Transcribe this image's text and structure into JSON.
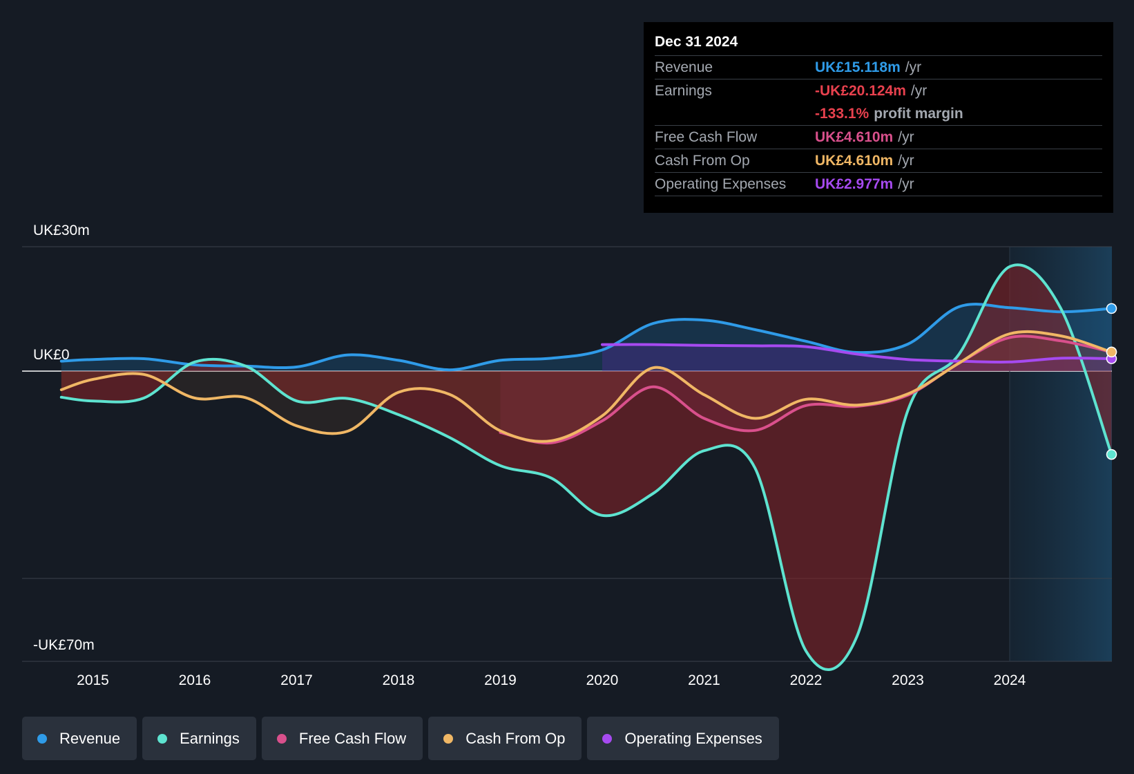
{
  "tooltip": {
    "date": "Dec 31 2024",
    "rows": [
      {
        "label": "Revenue",
        "value": "UK£15.118m",
        "unit": "/yr",
        "color": "#2f9be8"
      },
      {
        "label": "Earnings",
        "value": "-UK£20.124m",
        "unit": "/yr",
        "color": "#e8414e"
      },
      {
        "label": "",
        "value": "-133.1%",
        "unit": "profit margin",
        "color": "#e8414e"
      },
      {
        "label": "Free Cash Flow",
        "value": "UK£4.610m",
        "unit": "/yr",
        "color": "#d9508c"
      },
      {
        "label": "Cash From Op",
        "value": "UK£4.610m",
        "unit": "/yr",
        "color": "#f0b765"
      },
      {
        "label": "Operating Expenses",
        "value": "UK£2.977m",
        "unit": "/yr",
        "color": "#a64af0"
      }
    ]
  },
  "legend": [
    {
      "label": "Revenue",
      "color": "#2f9be8"
    },
    {
      "label": "Earnings",
      "color": "#5ee3d0"
    },
    {
      "label": "Free Cash Flow",
      "color": "#d9508c"
    },
    {
      "label": "Cash From Op",
      "color": "#f0b765"
    },
    {
      "label": "Operating Expenses",
      "color": "#a64af0"
    }
  ],
  "chart_data": {
    "type": "line",
    "title": "",
    "ylabel_top": "UK£30m",
    "ylabel_zero": "UK£0",
    "ylabel_bottom": "-UK£70m",
    "ylim": [
      -70,
      30
    ],
    "xlim": [
      2014.25,
      2025.0
    ],
    "x_ticks": [
      2015,
      2016,
      2017,
      2018,
      2019,
      2020,
      2021,
      2022,
      2023,
      2024
    ],
    "x_tick_labels": [
      "2015",
      "2016",
      "2017",
      "2018",
      "2019",
      "2020",
      "2021",
      "2022",
      "2023",
      "2024"
    ],
    "gridlines": [
      30,
      0,
      -50
    ],
    "forecast_start": 2024.0,
    "series": [
      {
        "name": "Revenue",
        "color": "#2f9be8",
        "x": [
          2014.69,
          2015.0,
          2015.5,
          2016.0,
          2016.5,
          2017.0,
          2017.5,
          2018.0,
          2018.5,
          2019.0,
          2019.5,
          2020.0,
          2020.5,
          2021.0,
          2021.5,
          2022.0,
          2022.5,
          2023.0,
          2023.5,
          2024.0,
          2024.5,
          2025.0
        ],
        "values": [
          2.4,
          2.8,
          3.0,
          1.5,
          1.2,
          1.0,
          3.9,
          2.6,
          0.3,
          2.6,
          3.1,
          5.1,
          11.5,
          12.3,
          10.0,
          7.2,
          4.5,
          6.5,
          15.5,
          15.3,
          14.3,
          15.1
        ]
      },
      {
        "name": "Earnings",
        "color": "#5ee3d0",
        "x": [
          2014.69,
          2015.0,
          2015.5,
          2016.0,
          2016.5,
          2017.0,
          2017.5,
          2018.0,
          2018.5,
          2019.0,
          2019.5,
          2020.0,
          2020.5,
          2021.0,
          2021.5,
          2022.0,
          2022.5,
          2023.0,
          2023.5,
          2024.0,
          2024.5,
          2025.0
        ],
        "values": [
          -6.3,
          -7.2,
          -6.5,
          2.2,
          1.2,
          -7.2,
          -6.6,
          -10.5,
          -16.0,
          -22.8,
          -25.8,
          -34.8,
          -29.5,
          -19.2,
          -23.4,
          -67.5,
          -64.0,
          -9.5,
          4.0,
          25.2,
          15.2,
          -20.1
        ]
      },
      {
        "name": "Free Cash Flow",
        "color": "#d9508c",
        "x": [
          2019.0,
          2019.5,
          2020.0,
          2020.5,
          2021.0,
          2021.5,
          2022.0,
          2022.5,
          2023.0,
          2023.5,
          2024.0,
          2024.5,
          2025.0
        ],
        "values": [
          -14.8,
          -17.3,
          -12.0,
          -3.8,
          -11.4,
          -14.3,
          -8.3,
          -8.5,
          -5.8,
          1.9,
          8.1,
          7.3,
          4.6
        ]
      },
      {
        "name": "Cash From Op",
        "color": "#f0b765",
        "x": [
          2014.69,
          2015.0,
          2015.5,
          2016.0,
          2016.5,
          2017.0,
          2017.5,
          2018.0,
          2018.5,
          2019.0,
          2019.5,
          2020.0,
          2020.5,
          2021.0,
          2021.5,
          2022.0,
          2022.5,
          2023.0,
          2023.5,
          2024.0,
          2024.5,
          2025.0
        ],
        "values": [
          -4.5,
          -2.0,
          -0.8,
          -6.5,
          -6.4,
          -13.2,
          -14.5,
          -5.1,
          -5.6,
          -14.4,
          -16.8,
          -10.8,
          0.8,
          -5.7,
          -11.4,
          -6.8,
          -8.2,
          -5.5,
          1.9,
          9.0,
          8.5,
          4.6
        ]
      },
      {
        "name": "Operating Expenses",
        "color": "#a64af0",
        "x": [
          2020.0,
          2020.5,
          2021.0,
          2021.5,
          2022.0,
          2022.5,
          2023.0,
          2023.5,
          2024.0,
          2024.5,
          2025.0
        ],
        "values": [
          6.4,
          6.4,
          6.2,
          6.1,
          5.9,
          4.1,
          2.8,
          2.4,
          2.2,
          3.1,
          3.0
        ]
      }
    ]
  }
}
